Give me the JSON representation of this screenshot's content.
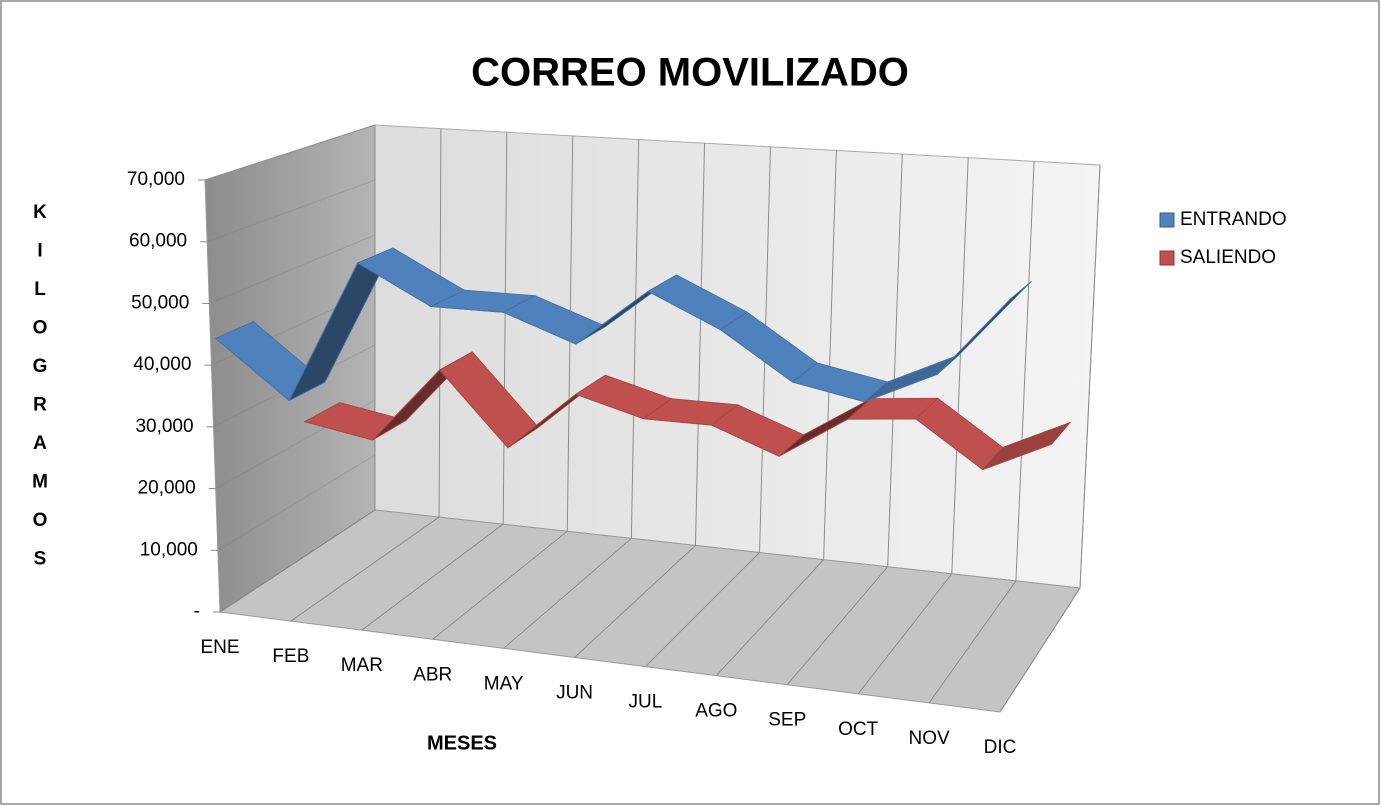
{
  "chart_data": {
    "type": "line3d",
    "title": "CORREO MOVILIZADO",
    "x_label": "MESES",
    "y_label": "KILOGRAMOS",
    "categories": [
      "ENE",
      "FEB",
      "MAR",
      "ABR",
      "MAY",
      "JUN",
      "JUL",
      "AGO",
      "SEP",
      "OCT",
      "NOV",
      "DIC"
    ],
    "series": [
      {
        "name": "ENTRANDO",
        "color": "#4f81bd",
        "values": [
          44000,
          35000,
          58000,
          52000,
          52000,
          48000,
          57000,
          52000,
          45000,
          43000,
          48000,
          60000
        ]
      },
      {
        "name": "SALIENDO",
        "color": "#c0504d",
        "values": [
          23000,
          21000,
          34000,
          22000,
          32000,
          29000,
          29000,
          25000,
          32000,
          33000,
          26000,
          31000
        ]
      }
    ],
    "ylim": [
      0,
      70000
    ],
    "yticks": [
      {
        "value": 0,
        "label": "-"
      },
      {
        "value": 10000,
        "label": "10,000"
      },
      {
        "value": 20000,
        "label": "20,000"
      },
      {
        "value": 30000,
        "label": "30,000"
      },
      {
        "value": 40000,
        "label": "40,000"
      },
      {
        "value": 50000,
        "label": "50,000"
      },
      {
        "value": 60000,
        "label": "60,000"
      },
      {
        "value": 70000,
        "label": "70,000"
      }
    ],
    "grid": true,
    "legend": "right"
  }
}
